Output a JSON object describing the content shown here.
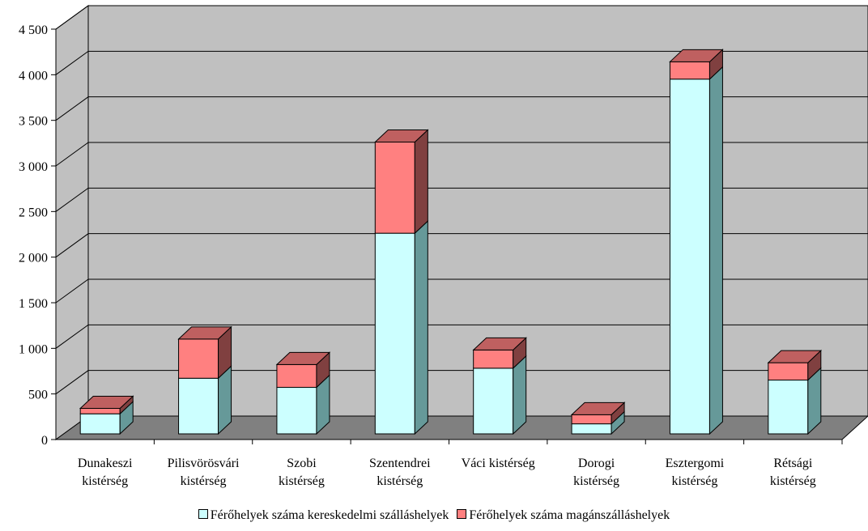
{
  "chart_data": {
    "type": "bar",
    "stacked": true,
    "three_d": true,
    "categories": [
      [
        "Dunakeszi",
        "kistérség"
      ],
      [
        "Pilisvörösvári",
        "kistérség"
      ],
      [
        "Szobi",
        "kistérség"
      ],
      [
        "Szentendrei",
        "kistérség"
      ],
      [
        "Váci kistérség"
      ],
      [
        "Dorogi",
        "kistérség"
      ],
      [
        "Esztergomi",
        "kistérség"
      ],
      [
        "Rétsági",
        "kistérség"
      ]
    ],
    "series": [
      {
        "name": "Férőhelyek száma kereskedelmi szálláshelyek",
        "color": "#ccffff",
        "values": [
          220,
          610,
          510,
          2200,
          720,
          110,
          3890,
          590
        ]
      },
      {
        "name": "Férőhelyek száma magánszálláshelyek",
        "color": "#ff8080",
        "values": [
          60,
          430,
          250,
          1000,
          200,
          100,
          190,
          190
        ]
      }
    ],
    "ylim": [
      0,
      4500
    ],
    "yticks": [
      0,
      500,
      1000,
      1500,
      2000,
      2500,
      3000,
      3500,
      4000,
      4500
    ],
    "ytick_labels": [
      "0",
      "500",
      "1 000",
      "1 500",
      "2 000",
      "2 500",
      "3 000",
      "3 500",
      "4 000",
      "4 500"
    ],
    "grid": true,
    "legend_position": "bottom",
    "title": "",
    "xlabel": "",
    "ylabel": ""
  }
}
